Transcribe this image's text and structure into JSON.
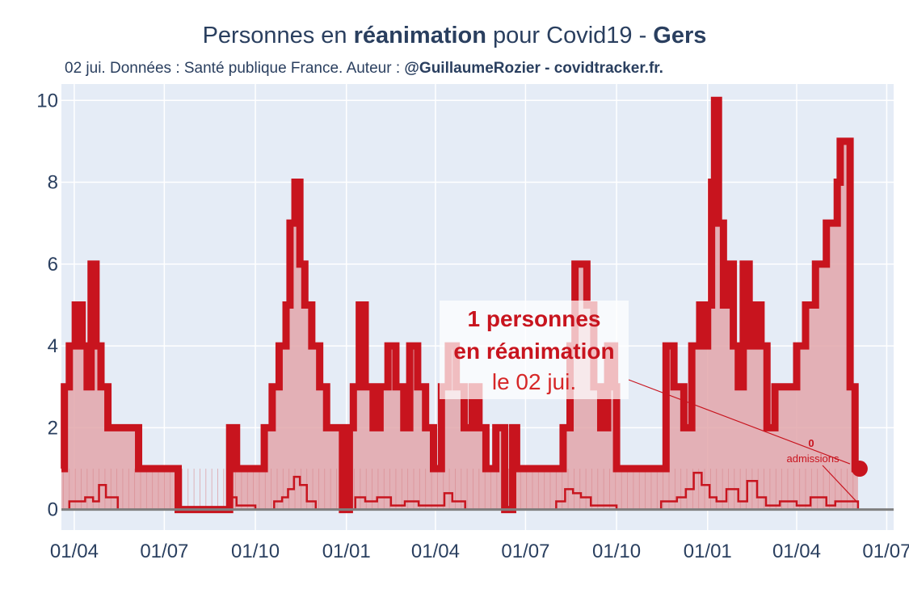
{
  "title": {
    "pre": "Personnes en ",
    "bold": "réanimation",
    "mid": " pour Covid19 - ",
    "dept": "Gers"
  },
  "subtitle": {
    "text": "02 jui. Données : Santé publique France. Auteur : ",
    "bold": "@GuillaumeRozier - covidtracker.fr."
  },
  "annotation": {
    "line1": "1 personnes",
    "line2": "en réanimation",
    "line3": "le 02 jui."
  },
  "admissions_annotation": {
    "value": "0",
    "label": "admissions"
  },
  "colors": {
    "accent": "#c8141e",
    "plot_bg": "#e5ecf6",
    "fill": "#e3a6aa",
    "text": "#2a3f5f"
  },
  "chart_data": {
    "type": "line",
    "x_tick_labels": [
      "01/04",
      "01/07",
      "01/10",
      "01/01",
      "01/04",
      "01/07",
      "01/10",
      "01/01",
      "01/04",
      "01/07"
    ],
    "x_ticks": [
      "2020-04-01",
      "2020-07-01",
      "2020-10-01",
      "2021-01-01",
      "2021-04-01",
      "2021-07-01",
      "2021-10-01",
      "2022-01-01",
      "2022-04-01",
      "2022-07-01"
    ],
    "xlim": [
      "2020-03-19",
      "2022-07-08"
    ],
    "y_ticks": [
      0,
      2,
      4,
      6,
      8,
      10
    ],
    "ylim": [
      -0.5,
      10.4
    ],
    "grid": true,
    "series": [
      {
        "key": "reanimation",
        "x": [
          "2020-03-19",
          "2020-03-22",
          "2020-03-27",
          "2020-04-02",
          "2020-04-09",
          "2020-04-14",
          "2020-04-18",
          "2020-04-23",
          "2020-04-28",
          "2020-05-05",
          "2020-05-12",
          "2020-05-22",
          "2020-06-05",
          "2020-06-20",
          "2020-07-01",
          "2020-07-15",
          "2020-08-01",
          "2020-08-20",
          "2020-09-01",
          "2020-09-05",
          "2020-09-12",
          "2020-09-20",
          "2020-10-01",
          "2020-10-10",
          "2020-10-18",
          "2020-10-25",
          "2020-11-01",
          "2020-11-05",
          "2020-11-10",
          "2020-11-15",
          "2020-11-20",
          "2020-11-27",
          "2020-12-05",
          "2020-12-12",
          "2020-12-20",
          "2020-12-28",
          "2021-01-04",
          "2021-01-08",
          "2021-01-14",
          "2021-01-20",
          "2021-01-28",
          "2021-02-04",
          "2021-02-12",
          "2021-02-20",
          "2021-02-28",
          "2021-03-06",
          "2021-03-14",
          "2021-03-22",
          "2021-03-30",
          "2021-04-07",
          "2021-04-14",
          "2021-04-22",
          "2021-04-30",
          "2021-05-08",
          "2021-05-15",
          "2021-05-22",
          "2021-06-01",
          "2021-06-10",
          "2021-06-18",
          "2021-06-22",
          "2021-06-28",
          "2021-07-15",
          "2021-08-01",
          "2021-08-08",
          "2021-08-15",
          "2021-08-20",
          "2021-08-25",
          "2021-09-01",
          "2021-09-08",
          "2021-09-15",
          "2021-09-22",
          "2021-09-29",
          "2021-10-01",
          "2021-10-15",
          "2021-11-01",
          "2021-11-10",
          "2021-11-20",
          "2021-11-28",
          "2021-12-08",
          "2021-12-16",
          "2021-12-24",
          "2021-12-30",
          "2022-01-01",
          "2022-01-05",
          "2022-01-08",
          "2022-01-12",
          "2022-01-17",
          "2022-01-22",
          "2022-01-27",
          "2022-02-01",
          "2022-02-06",
          "2022-02-12",
          "2022-02-18",
          "2022-02-24",
          "2022-03-02",
          "2022-03-10",
          "2022-03-20",
          "2022-04-01",
          "2022-04-10",
          "2022-04-20",
          "2022-05-01",
          "2022-05-08",
          "2022-05-12",
          "2022-05-15",
          "2022-05-20",
          "2022-05-25",
          "2022-05-30",
          "2022-06-02"
        ],
        "y": [
          1,
          3,
          4,
          5,
          4,
          3,
          6,
          4,
          3,
          2,
          2,
          2,
          1,
          1,
          1,
          0,
          0,
          0,
          0,
          2,
          1,
          1,
          1,
          2,
          3,
          4,
          5,
          7,
          8,
          6,
          5,
          4,
          3,
          2,
          2,
          0,
          2,
          3,
          5,
          3,
          2,
          3,
          4,
          3,
          2,
          4,
          3,
          2,
          1,
          3,
          4,
          3,
          2,
          3,
          2,
          1,
          2,
          0,
          2,
          1,
          1,
          1,
          1,
          2,
          4,
          6,
          6,
          5,
          3,
          2,
          4,
          3,
          1,
          1,
          1,
          1,
          4,
          3,
          2,
          4,
          5,
          4,
          5,
          8,
          10,
          7,
          5,
          6,
          4,
          3,
          6,
          4,
          5,
          4,
          2,
          3,
          3,
          4,
          5,
          6,
          7,
          7,
          8,
          9,
          9,
          3,
          1,
          1
        ]
      },
      {
        "key": "admissions",
        "x": [
          "2020-03-19",
          "2020-03-27",
          "2020-04-05",
          "2020-04-12",
          "2020-04-20",
          "2020-04-26",
          "2020-05-03",
          "2020-05-15",
          "2020-06-01",
          "2020-06-15",
          "2020-07-01",
          "2020-09-01",
          "2020-09-06",
          "2020-09-12",
          "2020-10-01",
          "2020-10-20",
          "2020-10-28",
          "2020-11-03",
          "2020-11-09",
          "2020-11-15",
          "2020-11-22",
          "2020-12-01",
          "2021-01-01",
          "2021-01-10",
          "2021-01-20",
          "2021-02-01",
          "2021-02-15",
          "2021-03-01",
          "2021-03-15",
          "2021-04-01",
          "2021-04-10",
          "2021-04-18",
          "2021-05-01",
          "2021-06-01",
          "2021-07-01",
          "2021-08-01",
          "2021-08-10",
          "2021-08-18",
          "2021-08-26",
          "2021-09-05",
          "2021-10-01",
          "2021-11-01",
          "2021-11-15",
          "2021-12-01",
          "2021-12-10",
          "2021-12-18",
          "2021-12-26",
          "2022-01-03",
          "2022-01-10",
          "2022-01-20",
          "2022-02-01",
          "2022-02-10",
          "2022-02-20",
          "2022-03-01",
          "2022-03-15",
          "2022-04-01",
          "2022-04-15",
          "2022-05-01",
          "2022-05-10",
          "2022-05-18",
          "2022-06-02"
        ],
        "y": [
          0,
          0.2,
          0.2,
          0.3,
          0.2,
          0.6,
          0.3,
          0,
          0,
          0,
          0,
          0,
          0.3,
          0.1,
          0,
          0.2,
          0.3,
          0.5,
          0.8,
          0.6,
          0.2,
          0,
          0,
          0.3,
          0.2,
          0.3,
          0.1,
          0.2,
          0.1,
          0.1,
          0.4,
          0.2,
          0,
          0,
          0,
          0.2,
          0.5,
          0.4,
          0.3,
          0.1,
          0,
          0,
          0.2,
          0.3,
          0.5,
          0.9,
          0.6,
          0.3,
          0.2,
          0.5,
          0.2,
          0.7,
          0.3,
          0.1,
          0.2,
          0.1,
          0.3,
          0.1,
          0.2,
          0.2,
          0
        ]
      }
    ],
    "last_point": {
      "x": "2022-06-02",
      "y": 1
    }
  }
}
